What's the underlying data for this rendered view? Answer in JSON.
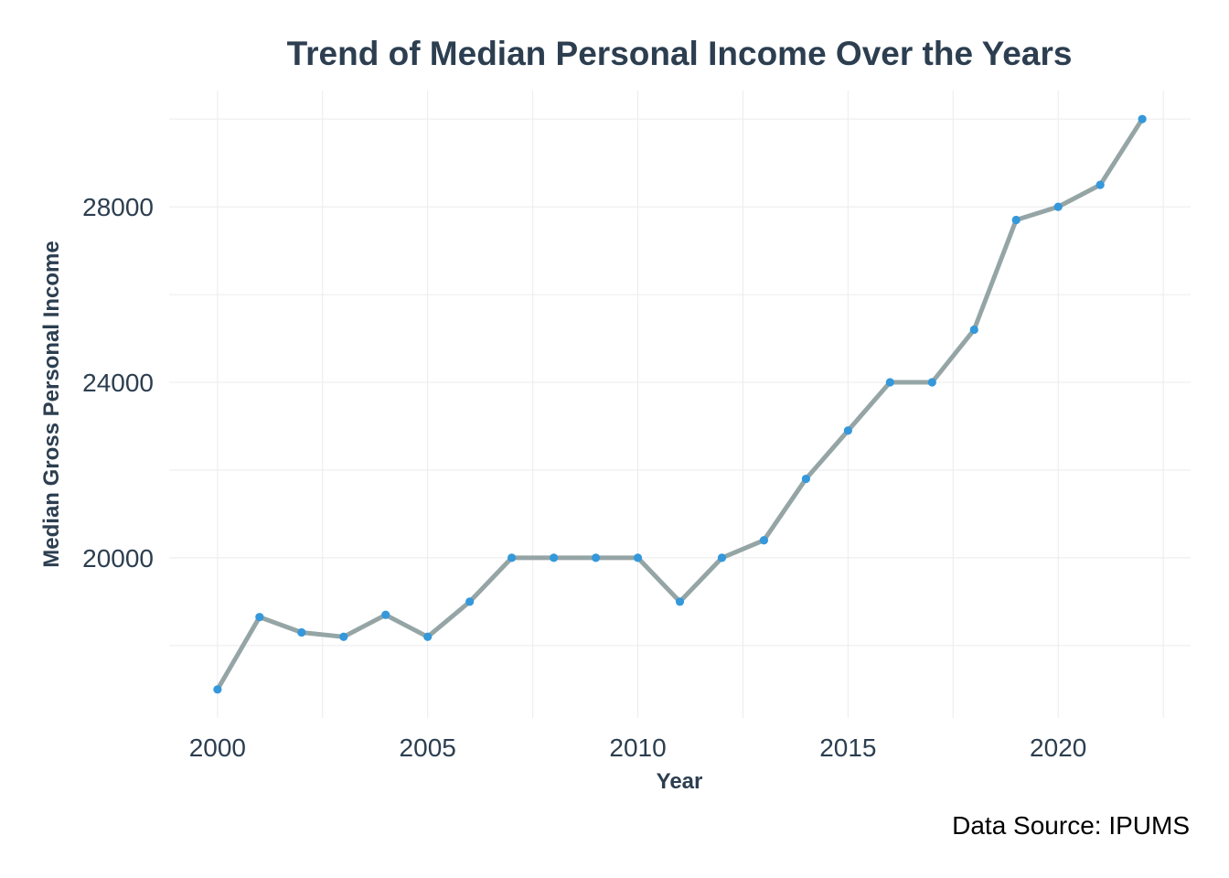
{
  "chart_data": {
    "type": "line",
    "title": "Trend of Median Personal Income Over the Years",
    "xlabel": "Year",
    "ylabel": "Median Gross Personal Income",
    "caption": "Data Source: IPUMS",
    "x": [
      2000,
      2001,
      2002,
      2003,
      2004,
      2005,
      2006,
      2007,
      2008,
      2009,
      2010,
      2011,
      2012,
      2013,
      2014,
      2015,
      2016,
      2017,
      2018,
      2019,
      2020,
      2021,
      2022
    ],
    "series": [
      {
        "values": [
          17000,
          18650,
          18300,
          18200,
          18700,
          18200,
          19000,
          20000,
          20000,
          20000,
          20000,
          19000,
          20000,
          20400,
          21800,
          22900,
          24000,
          24000,
          25200,
          27700,
          28000,
          28500,
          30000
        ]
      }
    ],
    "xticks": [
      2000,
      2005,
      2010,
      2015,
      2020
    ],
    "yticks": [
      20000,
      24000,
      28000
    ],
    "xlim": [
      1998.85,
      2023.15
    ],
    "ylim": [
      16350,
      30650
    ],
    "grid": true,
    "legend": "none",
    "colors": {
      "line": "#95a5a6",
      "points": "#3498db",
      "title": "#2c3e50",
      "grid": "#ebebeb"
    }
  }
}
